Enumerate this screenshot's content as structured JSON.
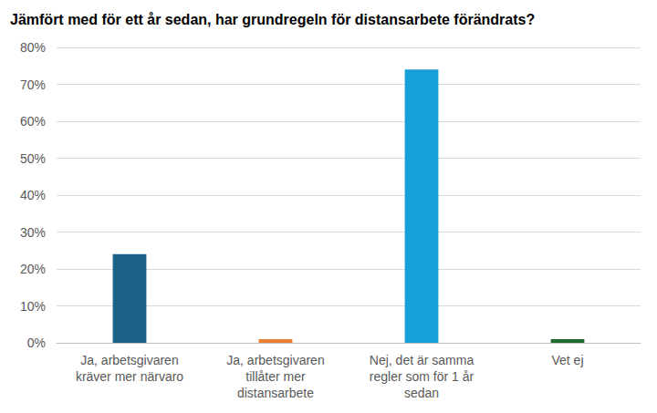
{
  "chart_data": {
    "type": "bar",
    "title": "Jämfört med för ett år sedan, har grundregeln för distansarbete förändrats?",
    "categories": [
      "Ja, arbetsgivaren\nkräver mer närvaro",
      "Ja, arbetsgivaren\ntillåter mer\ndistansarbete",
      "Nej, det är samma\nregler som för 1 år\nsedan",
      "Vet ej"
    ],
    "values": [
      24,
      1,
      74,
      1
    ],
    "colors": [
      "#1a6185",
      "#ed7d31",
      "#169fd8",
      "#1e6b2d"
    ],
    "ylim": [
      0,
      80
    ],
    "yticks": [
      {
        "value": 0,
        "label": "0%"
      },
      {
        "value": 10,
        "label": "10%"
      },
      {
        "value": 20,
        "label": "20%"
      },
      {
        "value": 30,
        "label": "30%"
      },
      {
        "value": 40,
        "label": "40%"
      },
      {
        "value": 50,
        "label": "50%"
      },
      {
        "value": 60,
        "label": "60%"
      },
      {
        "value": 70,
        "label": "70%"
      },
      {
        "value": 80,
        "label": "80%"
      }
    ],
    "grid": true
  }
}
